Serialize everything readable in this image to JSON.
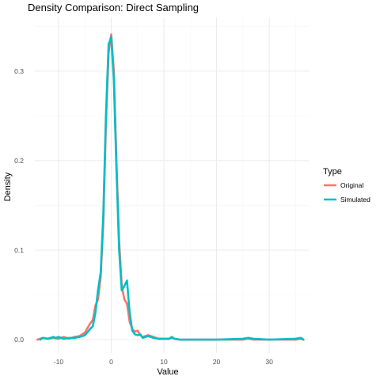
{
  "chart_data": {
    "type": "line",
    "title": "Density Comparison: Direct Sampling",
    "xlabel": "Value",
    "ylabel": "Density",
    "xlim": [
      -14.5,
      37.5
    ],
    "ylim": [
      -0.015,
      0.36
    ],
    "x_ticks": [
      -10,
      0,
      10,
      20,
      30
    ],
    "x_tick_labels": [
      "-10",
      "0",
      "10",
      "20",
      "30"
    ],
    "y_ticks": [
      0.0,
      0.1,
      0.2,
      0.3
    ],
    "y_tick_labels": [
      "0.0",
      "0.1",
      "0.2",
      "0.3"
    ],
    "grid": true,
    "legend": {
      "title": "Type",
      "position": "right"
    },
    "series": [
      {
        "name": "Original",
        "color": "#F8766D",
        "x": [
          -14,
          -13,
          -12,
          -11,
          -10,
          -9,
          -8,
          -7,
          -6,
          -5,
          -4,
          -3.5,
          -3,
          -2.5,
          -2,
          -1.5,
          -1,
          -0.5,
          0,
          0.5,
          1,
          1.5,
          2,
          2.5,
          3,
          3.5,
          4,
          4.5,
          5,
          5.5,
          6,
          7,
          8,
          9,
          10,
          11,
          11.5,
          12,
          13,
          15,
          20,
          25,
          26,
          27,
          30,
          35,
          36,
          36.5
        ],
        "y": [
          0,
          0.002,
          0.001,
          0.002,
          0.001,
          0.003,
          0.001,
          0.003,
          0.004,
          0.008,
          0.018,
          0.022,
          0.038,
          0.045,
          0.07,
          0.13,
          0.24,
          0.32,
          0.341,
          0.3,
          0.2,
          0.11,
          0.06,
          0.045,
          0.04,
          0.02,
          0.012,
          0.009,
          0.01,
          0.005,
          0.003,
          0.005,
          0.003,
          0.001,
          0.001,
          0.001,
          0.002,
          0.001,
          0,
          0,
          0,
          0,
          0.001,
          0,
          0,
          0,
          0.001,
          0
        ]
      },
      {
        "name": "Simulated",
        "color": "#00BFC4",
        "x": [
          -13.5,
          -13,
          -12,
          -11,
          -10.5,
          -10,
          -9,
          -8,
          -7,
          -6,
          -5,
          -4,
          -3.5,
          -3,
          -2.5,
          -2,
          -1.5,
          -1,
          -0.5,
          0,
          0.5,
          1,
          1.5,
          2,
          2.5,
          3,
          3.5,
          4,
          4.5,
          5,
          5.5,
          6,
          7,
          8,
          9,
          10,
          11,
          11.5,
          12,
          13,
          15,
          20,
          25,
          26,
          27,
          30,
          35,
          36,
          36.5
        ],
        "y": [
          0,
          0.002,
          0.001,
          0.003,
          0.002,
          0.003,
          0.001,
          0.002,
          0.002,
          0.003,
          0.005,
          0.012,
          0.015,
          0.03,
          0.055,
          0.075,
          0.14,
          0.25,
          0.33,
          0.338,
          0.29,
          0.19,
          0.1,
          0.055,
          0.06,
          0.066,
          0.03,
          0.01,
          0.006,
          0.005,
          0.006,
          0.002,
          0.004,
          0.002,
          0.001,
          0.001,
          0.001,
          0.003,
          0.001,
          0,
          0,
          0,
          0.001,
          0.002,
          0.001,
          0,
          0.001,
          0.002,
          0
        ]
      }
    ]
  }
}
